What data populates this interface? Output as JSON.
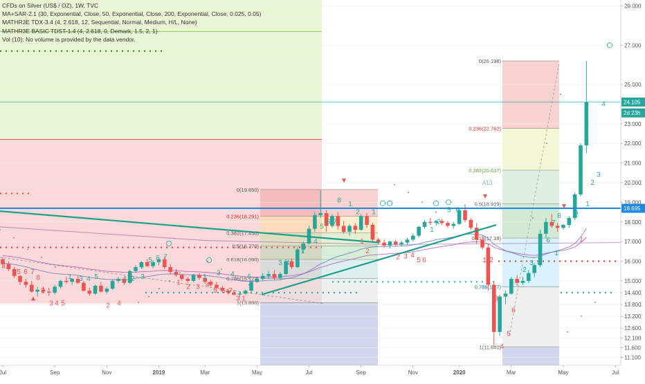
{
  "header": {
    "lines": [
      "CFDs on Silver (US$ / OZ), 1W, TVC",
      "MA+SAR-2.1 (30, Exponential, Close, 50, Exponential, Close, 200, Exponential, Close, 0.025, 0.05)",
      "MATHR3E TDX-3.4 (4, 2.618, 12, Sequential, Normal, Medium, H/L, None)",
      "MATHR3E BASIC TDST-1.4 (4, 2.618, 0, Demark, 1.5, 2, 1)",
      "Vol (10): No volume is provided by the data vendor."
    ]
  },
  "colors": {
    "up": "#26a69a",
    "down": "#ef5350",
    "blueline": "#1e88e5",
    "trendline": "#1b9e8a",
    "axis_text": "#555555"
  },
  "chart_data": {
    "type": "candlestick",
    "symbol": "CFDs on Silver (US$ / OZ)",
    "timeframe": "1W",
    "y_range": [
      10.7,
      29.3
    ],
    "y_ticks": [
      "29.000",
      "27.000",
      "25.000",
      "23.000",
      "22.000",
      "21.000",
      "20.000",
      "19.000",
      "18.000",
      "17.000",
      "16.000",
      "15.000",
      "14.400",
      "13.800",
      "13.200",
      "12.600",
      "12.100",
      "11.600",
      "11.100"
    ],
    "y_tick_values": [
      29,
      27,
      25,
      23,
      22,
      21,
      20,
      19,
      18,
      17,
      16,
      15,
      14.4,
      13.8,
      13.2,
      12.6,
      12.1,
      11.6,
      11.1
    ],
    "x_labels": [
      "Jul",
      "Sep",
      "Nov",
      "2019",
      "Mar",
      "May",
      "Jul",
      "Sep",
      "Nov",
      "2020",
      "Mar",
      "May",
      "Jul"
    ],
    "x_label_weeks": [
      0,
      9,
      18,
      27,
      35,
      44,
      53,
      62,
      71,
      79,
      88,
      97,
      106
    ],
    "price_tags": [
      {
        "label": "24.105",
        "value": 24.105,
        "color": "#26a69a"
      },
      {
        "label": "2d 23h",
        "value": 23.55,
        "color": "#26a69a"
      },
      {
        "label": "18.695",
        "value": 18.695,
        "color": "#1e88e5"
      }
    ],
    "horizontal_lines": [
      {
        "value": 18.695,
        "color": "#1e88e5",
        "width": 2
      },
      {
        "value": 24.105,
        "color": "#26a69a",
        "width": 0.6
      }
    ],
    "fib_left": {
      "levels": [
        {
          "label": "0(19.650)",
          "value": 19.65
        },
        {
          "label": "0.236(18.291)",
          "value": 18.291
        },
        {
          "label": "0.382(17.450)",
          "value": 17.45
        },
        {
          "label": "0.5(16.770)",
          "value": 16.77
        },
        {
          "label": "0.618(16.090)",
          "value": 16.09
        },
        {
          "label": "0.786(15.123)",
          "value": 15.123
        },
        {
          "label": "1(13.890)",
          "value": 13.89
        }
      ]
    },
    "fib_right": {
      "levels": [
        {
          "label": "0(26.198)",
          "value": 26.198
        },
        {
          "label": "0.236(22.762)",
          "value": 22.762
        },
        {
          "label": "0.382(20.637)",
          "value": 20.637
        },
        {
          "label": "0.5(18.919)",
          "value": 18.919
        },
        {
          "label": "0.618(17.18)",
          "value": 17.18
        },
        {
          "label": "0.786(14.7)",
          "value": 14.7
        },
        {
          "label": "1(11.640)",
          "value": 11.64
        }
      ]
    },
    "annotation_a13": "A13",
    "candles": [
      [
        16.1,
        16.2,
        15.7,
        15.85
      ],
      [
        15.85,
        16.0,
        15.5,
        15.6
      ],
      [
        15.6,
        15.7,
        15.15,
        15.25
      ],
      [
        15.25,
        15.3,
        14.8,
        14.95
      ],
      [
        14.95,
        15.1,
        14.65,
        14.8
      ],
      [
        14.8,
        15.0,
        14.4,
        14.45
      ],
      [
        14.45,
        14.7,
        14.2,
        14.55
      ],
      [
        14.55,
        14.7,
        14.35,
        14.45
      ],
      [
        14.45,
        14.65,
        14.25,
        14.4
      ],
      [
        14.4,
        14.8,
        14.3,
        14.7
      ],
      [
        14.7,
        15.05,
        14.6,
        15.0
      ],
      [
        15.0,
        15.2,
        14.85,
        14.95
      ],
      [
        14.95,
        15.15,
        14.8,
        15.1
      ],
      [
        15.1,
        15.25,
        14.85,
        14.9
      ],
      [
        14.9,
        15.0,
        14.45,
        14.5
      ],
      [
        14.5,
        14.65,
        14.25,
        14.35
      ],
      [
        14.35,
        14.8,
        14.3,
        14.75
      ],
      [
        14.75,
        14.95,
        14.4,
        14.45
      ],
      [
        14.45,
        14.7,
        14.35,
        14.6
      ],
      [
        14.6,
        15.05,
        14.55,
        15.0
      ],
      [
        15.0,
        15.2,
        14.9,
        15.1
      ],
      [
        15.1,
        15.2,
        14.8,
        14.9
      ],
      [
        14.9,
        15.55,
        14.85,
        15.5
      ],
      [
        15.5,
        15.8,
        15.4,
        15.7
      ],
      [
        15.7,
        16.0,
        15.6,
        15.95
      ],
      [
        15.95,
        16.1,
        15.7,
        15.75
      ],
      [
        15.75,
        16.05,
        15.65,
        15.95
      ],
      [
        15.95,
        16.2,
        15.8,
        16.1
      ],
      [
        16.1,
        16.25,
        15.6,
        15.7
      ],
      [
        15.7,
        15.85,
        15.35,
        15.45
      ],
      [
        15.45,
        15.6,
        15.2,
        15.3
      ],
      [
        15.3,
        15.35,
        15.0,
        15.1
      ],
      [
        15.1,
        15.2,
        14.9,
        15.0
      ],
      [
        15.0,
        15.35,
        14.95,
        15.3
      ],
      [
        15.3,
        15.4,
        15.05,
        15.15
      ],
      [
        15.15,
        15.3,
        14.85,
        14.95
      ],
      [
        14.95,
        15.05,
        14.7,
        14.8
      ],
      [
        14.8,
        14.95,
        14.55,
        14.65
      ],
      [
        14.65,
        14.75,
        14.4,
        14.5
      ],
      [
        14.5,
        14.6,
        14.3,
        14.4
      ],
      [
        14.4,
        14.55,
        14.25,
        14.3
      ],
      [
        14.3,
        14.45,
        14.2,
        14.35
      ],
      [
        14.35,
        14.55,
        14.3,
        14.5
      ],
      [
        14.5,
        15.0,
        14.45,
        14.95
      ],
      [
        14.95,
        15.2,
        14.9,
        15.1
      ],
      [
        15.1,
        15.4,
        15.0,
        15.25
      ],
      [
        15.25,
        15.5,
        15.1,
        15.35
      ],
      [
        15.35,
        15.55,
        15.05,
        15.15
      ],
      [
        15.15,
        15.45,
        15.05,
        15.35
      ],
      [
        15.35,
        16.1,
        15.3,
        16.0
      ],
      [
        16.0,
        16.15,
        15.6,
        15.7
      ],
      [
        15.7,
        16.7,
        15.65,
        16.6
      ],
      [
        16.6,
        17.0,
        16.4,
        16.9
      ],
      [
        16.9,
        17.8,
        16.85,
        17.65
      ],
      [
        17.65,
        18.5,
        17.5,
        18.35
      ],
      [
        18.35,
        19.6,
        18.2,
        18.45
      ],
      [
        18.45,
        18.6,
        17.5,
        17.8
      ],
      [
        17.8,
        18.4,
        17.7,
        18.3
      ],
      [
        18.3,
        18.5,
        17.6,
        17.8
      ],
      [
        17.8,
        18.05,
        17.4,
        17.5
      ],
      [
        17.5,
        17.9,
        17.3,
        17.8
      ],
      [
        17.8,
        17.95,
        17.4,
        17.6
      ],
      [
        17.6,
        18.4,
        17.55,
        18.3
      ],
      [
        18.3,
        18.45,
        17.7,
        17.85
      ],
      [
        17.85,
        17.95,
        17.0,
        17.1
      ],
      [
        17.1,
        17.2,
        16.85,
        16.95
      ],
      [
        16.95,
        17.1,
        16.7,
        16.8
      ],
      [
        16.8,
        17.05,
        16.65,
        17.0
      ],
      [
        17.0,
        17.1,
        16.75,
        16.85
      ],
      [
        16.85,
        17.05,
        16.75,
        16.95
      ],
      [
        16.95,
        17.2,
        16.85,
        17.1
      ],
      [
        17.1,
        17.4,
        17.0,
        17.3
      ],
      [
        17.3,
        17.8,
        17.2,
        17.75
      ],
      [
        17.75,
        18.1,
        17.65,
        18.0
      ],
      [
        18.0,
        18.2,
        17.85,
        17.95
      ],
      [
        17.95,
        18.1,
        17.8,
        18.05
      ],
      [
        18.05,
        18.15,
        17.85,
        17.95
      ],
      [
        17.95,
        18.05,
        17.7,
        17.8
      ],
      [
        17.8,
        18.0,
        17.65,
        17.9
      ],
      [
        17.9,
        18.7,
        17.85,
        18.6
      ],
      [
        18.6,
        18.9,
        18.0,
        18.1
      ],
      [
        18.1,
        18.2,
        17.6,
        17.7
      ],
      [
        17.7,
        17.95,
        16.9,
        17.1
      ],
      [
        17.1,
        17.3,
        16.6,
        16.7
      ],
      [
        16.7,
        16.9,
        14.5,
        14.8
      ],
      [
        14.8,
        14.95,
        11.64,
        12.4
      ],
      [
        12.4,
        14.3,
        12.2,
        14.2
      ],
      [
        14.2,
        14.5,
        13.8,
        14.35
      ],
      [
        14.35,
        15.2,
        14.3,
        15.1
      ],
      [
        15.1,
        15.3,
        14.75,
        14.9
      ],
      [
        14.9,
        15.2,
        14.8,
        15.0
      ],
      [
        15.0,
        15.55,
        14.9,
        15.4
      ],
      [
        15.4,
        15.9,
        15.2,
        15.8
      ],
      [
        15.8,
        17.6,
        15.7,
        17.4
      ],
      [
        17.4,
        18.2,
        17.2,
        18.0
      ],
      [
        18.0,
        18.4,
        17.7,
        17.8
      ],
      [
        17.8,
        17.95,
        17.5,
        17.7
      ],
      [
        17.7,
        17.9,
        17.6,
        17.85
      ],
      [
        17.85,
        18.3,
        17.7,
        18.2
      ],
      [
        18.2,
        19.5,
        18.1,
        19.4
      ],
      [
        19.4,
        22.0,
        19.3,
        21.9
      ],
      [
        21.9,
        26.2,
        21.5,
        24.1
      ]
    ]
  }
}
